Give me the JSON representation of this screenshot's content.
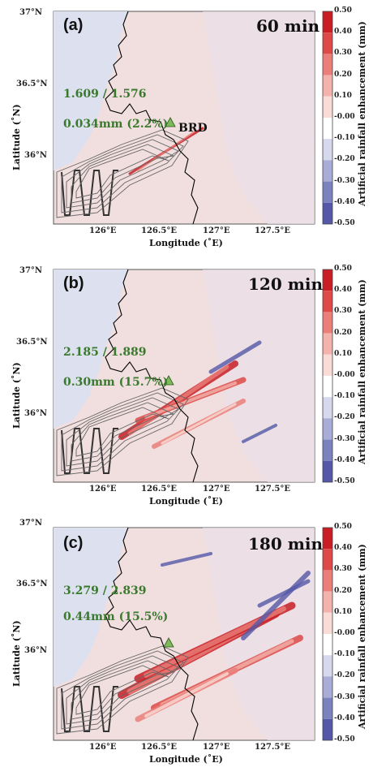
{
  "axes": {
    "y_ticks": [
      "37°N",
      "36.5°N",
      "36°N"
    ],
    "x_ticks": [
      "126°E",
      "126.5°E",
      "127°E",
      "127.5°E"
    ],
    "xlabel": "Longitude (˚E)",
    "ylabel": "Latitude (˚N)"
  },
  "colorbar": {
    "label": "Artificial rainfall enhancement (mm)",
    "ticks": [
      "0.50",
      "0.40",
      "0.30",
      "0.20",
      "0.10",
      "-0.00",
      "-0.10",
      "-0.20",
      "-0.30",
      "-0.40",
      "-0.50"
    ],
    "colors": [
      "#c81e24",
      "#dd4a47",
      "#ea7f79",
      "#f3b2ab",
      "#fadbd6",
      "#ffffff",
      "#d6d8ee",
      "#a8acd6",
      "#7b82c0",
      "#5558a8",
      "#2e3592"
    ]
  },
  "marker": {
    "name": "BRD",
    "color": "#7cba5a"
  },
  "panels": [
    {
      "label": "(a)",
      "time": "60 min",
      "ratio": "1.609 / 1.576",
      "enhancement": "0.034mm (2.2%)"
    },
    {
      "label": "(b)",
      "time": "120 min",
      "ratio": "2.185 / 1.889",
      "enhancement": "0.30mm (15.7%)"
    },
    {
      "label": "(c)",
      "time": "180 min",
      "ratio": "3.279 / 2.839",
      "enhancement": "0.44mm (15.5%)"
    }
  ]
}
